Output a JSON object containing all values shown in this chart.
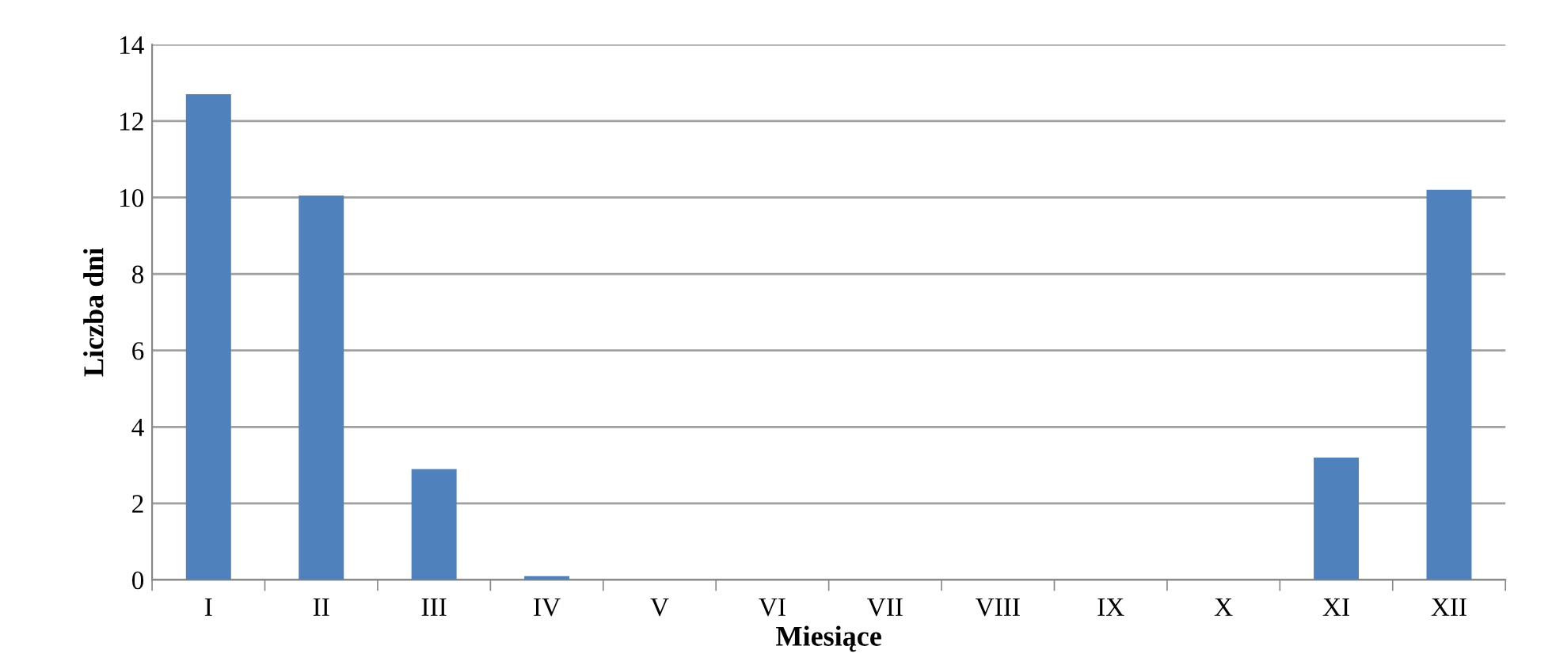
{
  "chart_data": {
    "type": "bar",
    "xlabel": "Miesiące",
    "ylabel": "Liczba dni",
    "categories": [
      "I",
      "II",
      "III",
      "IV",
      "V",
      "VI",
      "VII",
      "VIII",
      "IX",
      "X",
      "XI",
      "XII"
    ],
    "values": [
      12.7,
      10.05,
      2.9,
      0.1,
      0,
      0,
      0,
      0,
      0,
      0,
      3.2,
      10.2
    ],
    "color": "#4f81bd",
    "ylim": [
      0,
      14
    ],
    "yticks": [
      0,
      2,
      4,
      6,
      8,
      10,
      12,
      14
    ],
    "grid": "y"
  }
}
